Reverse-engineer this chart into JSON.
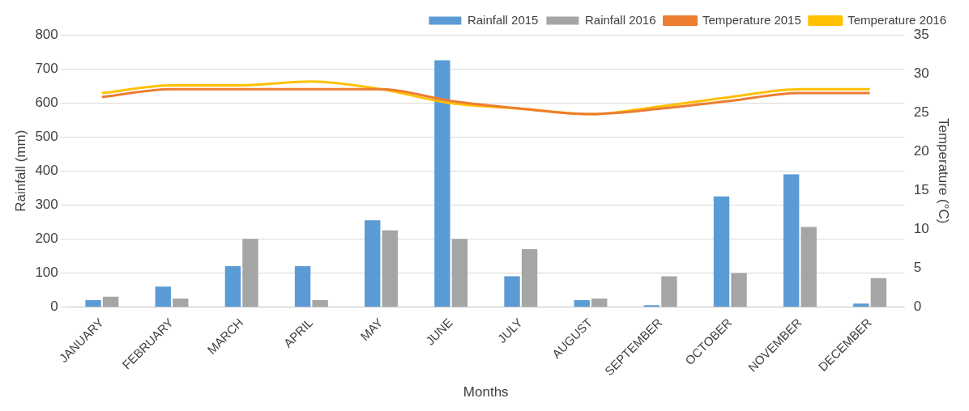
{
  "chart_data": {
    "type": "bar",
    "xlabel": "Months",
    "ylabel": "Rainfall (mm)",
    "y2label": "Temperature (°C)",
    "categories": [
      "JANUARY",
      "FEBRUARY",
      "MARCH",
      "APRIL",
      "MAY",
      "JUNE",
      "JULY",
      "AUGUST",
      "SEPTEMBER",
      "OCTOBER",
      "NOVEMBER",
      "DECEMBER"
    ],
    "series": [
      {
        "name": "Rainfall 2015",
        "color": "#5b9bd5",
        "values": [
          20,
          60,
          120,
          120,
          255,
          725,
          90,
          20,
          5,
          325,
          390,
          10
        ]
      },
      {
        "name": "Rainfall 2016",
        "color": "#a5a5a5",
        "values": [
          30,
          25,
          200,
          20,
          225,
          200,
          170,
          25,
          90,
          100,
          235,
          85
        ]
      },
      {
        "name": "Temperature 2015",
        "type": "line",
        "axis": "y2",
        "color": "#ed7d31",
        "values": [
          27,
          28,
          28,
          28,
          28,
          26.5,
          25.5,
          24.8,
          25.5,
          26.5,
          27.5,
          27.5
        ]
      },
      {
        "name": "Temperature 2016",
        "type": "line",
        "axis": "y2",
        "color": "#ffc000",
        "values": [
          27.5,
          28.5,
          28.5,
          29,
          28,
          26.2,
          25.5,
          24.8,
          25.8,
          27,
          28,
          28
        ]
      }
    ],
    "ylim": [
      0,
      800
    ],
    "yticks": [
      0,
      100,
      200,
      300,
      400,
      500,
      600,
      700,
      800
    ],
    "y2lim": [
      0,
      35
    ],
    "y2ticks": [
      0,
      5,
      10,
      15,
      20,
      25,
      30,
      35
    ],
    "grid": "y",
    "legend": "top right",
    "marker": "none"
  }
}
